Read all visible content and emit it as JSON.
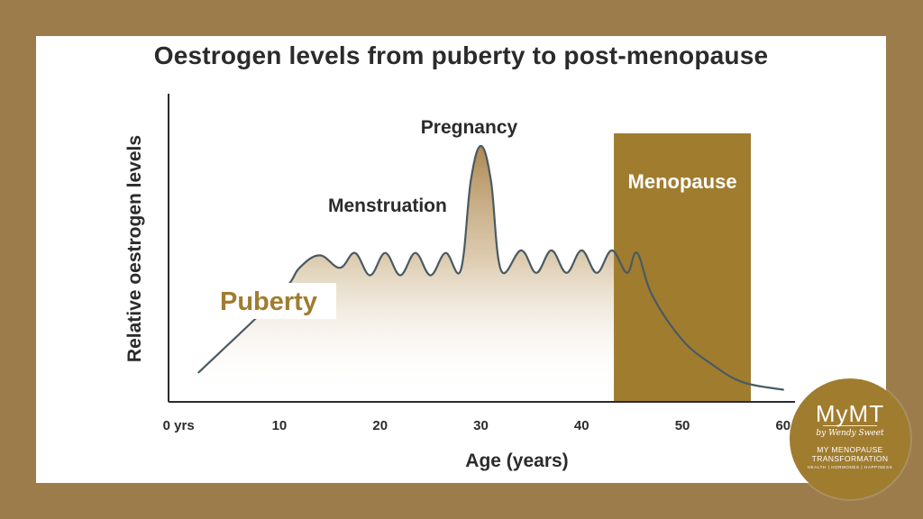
{
  "chart_data": {
    "type": "line",
    "title": "Oestrogen levels from puberty to post-menopause",
    "xlabel": "Age (years)",
    "ylabel": "Relative oestrogen levels",
    "xlim": [
      -1,
      61
    ],
    "ylim": [
      0,
      100
    ],
    "x_ticks": [
      0,
      10,
      20,
      30,
      40,
      50,
      60
    ],
    "x_tick_labels": [
      "0 yrs",
      "10",
      "20",
      "30",
      "40",
      "50",
      "60"
    ],
    "grid": false,
    "series": [
      {
        "values": [
          {
            "x": 2,
            "y": 9
          },
          {
            "x": 10,
            "y": 40
          },
          {
            "x": 12,
            "y": 51
          },
          {
            "x": 14,
            "y": 56
          },
          {
            "x": 16,
            "y": 51
          },
          {
            "x": 17.5,
            "y": 57
          },
          {
            "x": 19,
            "y": 48
          },
          {
            "x": 20.5,
            "y": 57
          },
          {
            "x": 22,
            "y": 48
          },
          {
            "x": 23.5,
            "y": 57
          },
          {
            "x": 25,
            "y": 48
          },
          {
            "x": 26.5,
            "y": 57
          },
          {
            "x": 28,
            "y": 50
          },
          {
            "x": 29,
            "y": 86
          },
          {
            "x": 30,
            "y": 100
          },
          {
            "x": 31,
            "y": 86
          },
          {
            "x": 32,
            "y": 50
          },
          {
            "x": 34,
            "y": 58
          },
          {
            "x": 35.5,
            "y": 49
          },
          {
            "x": 37,
            "y": 58
          },
          {
            "x": 38.5,
            "y": 49
          },
          {
            "x": 40,
            "y": 58
          },
          {
            "x": 41.5,
            "y": 49
          },
          {
            "x": 43,
            "y": 58
          },
          {
            "x": 44.5,
            "y": 49
          },
          {
            "x": 45.5,
            "y": 57
          },
          {
            "x": 47,
            "y": 40
          },
          {
            "x": 50,
            "y": 22
          },
          {
            "x": 53,
            "y": 12
          },
          {
            "x": 56,
            "y": 5
          },
          {
            "x": 60,
            "y": 2
          }
        ]
      }
    ],
    "menopause_band": {
      "x_start": 43.2,
      "x_end": 56.8,
      "label": "Menopause"
    },
    "annotations": {
      "pregnancy": "Pregnancy",
      "menstruation": "Menstruation",
      "puberty": "Puberty"
    },
    "colors": {
      "line": "#4a5a63",
      "band": "#a07c2f",
      "fill_top": "#b08a4b",
      "accent_text": "#a07c2f",
      "text": "#2b2b2b"
    }
  },
  "logo": {
    "brand": "MyMT",
    "byline": "by Wendy Sweet",
    "tagline": "MY MENOPAUSE TRANSFORMATION",
    "sub": "HEALTH | HORMONES | HAPPINESS"
  }
}
